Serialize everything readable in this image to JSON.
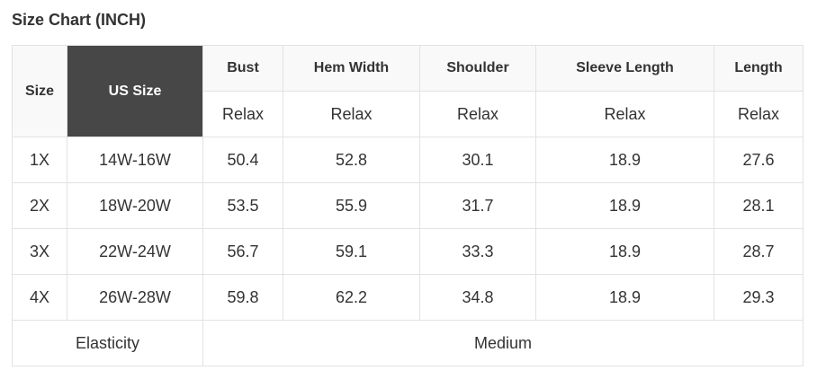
{
  "title": "Size Chart (INCH)",
  "headers": {
    "size": "Size",
    "us_size": "US Size",
    "cols": [
      "Bust",
      "Hem Width",
      "Shoulder",
      "Sleeve Length",
      "Length"
    ],
    "sub": [
      "Relax",
      "Relax",
      "Relax",
      "Relax",
      "Relax"
    ]
  },
  "rows": [
    [
      "1X",
      "14W-16W",
      "50.4",
      "52.8",
      "30.1",
      "18.9",
      "27.6"
    ],
    [
      "2X",
      "18W-20W",
      "53.5",
      "55.9",
      "31.7",
      "18.9",
      "28.1"
    ],
    [
      "3X",
      "22W-24W",
      "56.7",
      "59.1",
      "33.3",
      "18.9",
      "28.7"
    ],
    [
      "4X",
      "26W-28W",
      "59.8",
      "62.2",
      "34.8",
      "18.9",
      "29.3"
    ]
  ],
  "footer": {
    "label": "Elasticity",
    "value": "Medium"
  },
  "colors": {
    "us_size_header_bg": "#474747",
    "header_bg": "#f9f9f9",
    "border": "#e2e2e2"
  }
}
